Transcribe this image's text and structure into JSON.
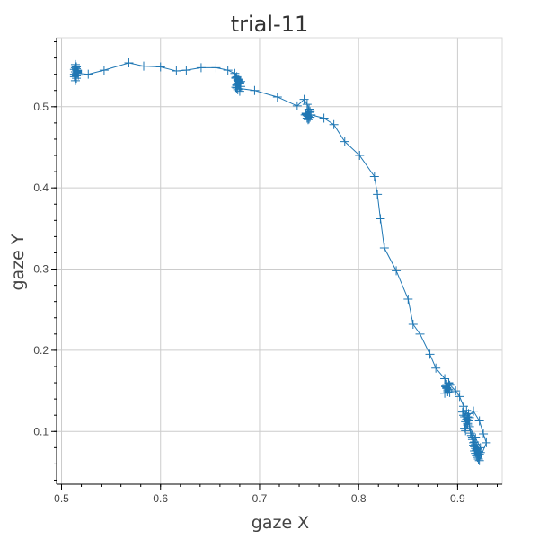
{
  "chart_data": {
    "type": "line",
    "title": "trial-11",
    "xlabel": "gaze X",
    "ylabel": "gaze Y",
    "xlim": [
      0.495,
      0.945
    ],
    "ylim": [
      0.035,
      0.585
    ],
    "xticks": [
      0.5,
      0.6,
      0.7,
      0.8,
      0.9
    ],
    "yticks": [
      0.1,
      0.2,
      0.3,
      0.4,
      0.5
    ],
    "xtick_labels": [
      "0.5",
      "0.6",
      "0.7",
      "0.8",
      "0.9"
    ],
    "ytick_labels": [
      "0.1",
      "0.2",
      "0.3",
      "0.4",
      "0.5"
    ],
    "grid": true,
    "marker": "cross",
    "color": "#1f77b4",
    "series": [
      {
        "x": [
          0.514,
          0.515,
          0.513,
          0.516,
          0.514,
          0.515,
          0.516,
          0.513,
          0.515,
          0.514,
          0.516,
          0.515,
          0.517,
          0.514,
          0.515,
          0.513,
          0.516,
          0.515,
          0.514,
          0.516,
          0.527,
          0.543,
          0.568,
          0.583,
          0.6,
          0.616,
          0.626,
          0.641,
          0.656,
          0.668,
          0.675,
          0.677,
          0.679,
          0.676,
          0.68,
          0.678,
          0.677,
          0.681,
          0.679,
          0.676,
          0.68,
          0.678,
          0.677,
          0.679,
          0.681,
          0.678,
          0.676,
          0.68,
          0.679,
          0.677,
          0.695,
          0.718,
          0.738,
          0.745,
          0.748,
          0.75,
          0.747,
          0.749,
          0.751,
          0.748,
          0.746,
          0.75,
          0.749,
          0.747,
          0.751,
          0.748,
          0.75,
          0.749,
          0.752,
          0.765,
          0.775,
          0.786,
          0.801,
          0.816,
          0.819,
          0.822,
          0.826,
          0.838,
          0.85,
          0.855,
          0.862,
          0.872,
          0.878,
          0.887,
          0.889,
          0.891,
          0.888,
          0.89,
          0.892,
          0.889,
          0.887,
          0.891,
          0.89,
          0.888,
          0.892,
          0.889,
          0.891,
          0.898,
          0.902,
          0.906,
          0.905,
          0.907,
          0.909,
          0.908,
          0.906,
          0.91,
          0.911,
          0.909,
          0.907,
          0.912,
          0.91,
          0.908,
          0.911,
          0.913,
          0.915,
          0.917,
          0.914,
          0.916,
          0.918,
          0.915,
          0.917,
          0.919,
          0.916,
          0.918,
          0.92,
          0.917,
          0.919,
          0.921,
          0.918,
          0.92,
          0.922,
          0.919,
          0.921,
          0.923,
          0.92,
          0.922,
          0.924,
          0.929,
          0.926,
          0.922,
          0.916,
          0.91,
          0.912,
          0.918,
          0.923
        ],
        "y": [
          0.543,
          0.547,
          0.54,
          0.545,
          0.55,
          0.538,
          0.542,
          0.546,
          0.535,
          0.548,
          0.544,
          0.541,
          0.539,
          0.552,
          0.545,
          0.537,
          0.543,
          0.549,
          0.532,
          0.541,
          0.54,
          0.545,
          0.554,
          0.55,
          0.549,
          0.544,
          0.545,
          0.548,
          0.548,
          0.545,
          0.541,
          0.537,
          0.532,
          0.535,
          0.529,
          0.533,
          0.526,
          0.531,
          0.528,
          0.524,
          0.53,
          0.521,
          0.527,
          0.534,
          0.525,
          0.529,
          0.536,
          0.519,
          0.531,
          0.523,
          0.52,
          0.512,
          0.501,
          0.509,
          0.503,
          0.497,
          0.492,
          0.488,
          0.494,
          0.486,
          0.49,
          0.485,
          0.496,
          0.491,
          0.487,
          0.489,
          0.493,
          0.484,
          0.49,
          0.486,
          0.478,
          0.457,
          0.44,
          0.414,
          0.392,
          0.362,
          0.326,
          0.298,
          0.263,
          0.232,
          0.22,
          0.195,
          0.178,
          0.165,
          0.158,
          0.152,
          0.155,
          0.149,
          0.157,
          0.153,
          0.147,
          0.16,
          0.151,
          0.156,
          0.148,
          0.154,
          0.159,
          0.15,
          0.143,
          0.131,
          0.124,
          0.118,
          0.126,
          0.112,
          0.12,
          0.108,
          0.122,
          0.115,
          0.104,
          0.117,
          0.11,
          0.101,
          0.113,
          0.098,
          0.092,
          0.087,
          0.095,
          0.083,
          0.079,
          0.09,
          0.076,
          0.082,
          0.086,
          0.073,
          0.078,
          0.081,
          0.07,
          0.075,
          0.084,
          0.068,
          0.072,
          0.077,
          0.066,
          0.074,
          0.079,
          0.064,
          0.071,
          0.086,
          0.097,
          0.113,
          0.125,
          0.118,
          0.106,
          0.092,
          0.08
        ]
      }
    ]
  }
}
